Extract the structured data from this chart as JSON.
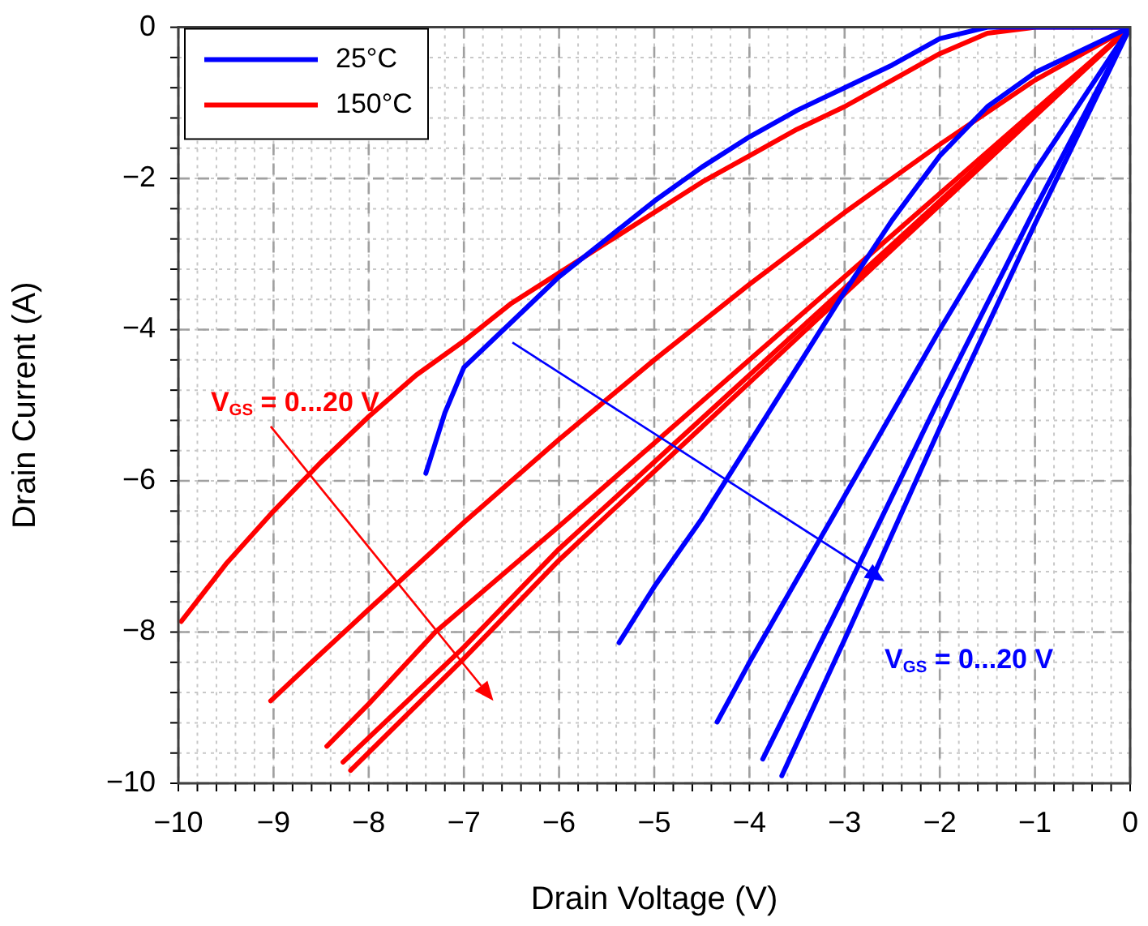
{
  "chart_data": {
    "type": "line",
    "xlabel": "Drain Voltage (V)",
    "ylabel": "Drain Current (A)",
    "xlim": [
      -10,
      0
    ],
    "ylim": [
      -10,
      0
    ],
    "xticks": [
      {
        "value": -10,
        "label": "−10"
      },
      {
        "value": -9,
        "label": "−9"
      },
      {
        "value": -8,
        "label": "−8"
      },
      {
        "value": -7,
        "label": "−7"
      },
      {
        "value": -6,
        "label": "−6"
      },
      {
        "value": -5,
        "label": "−5"
      },
      {
        "value": -4,
        "label": "−4"
      },
      {
        "value": -3,
        "label": "−3"
      },
      {
        "value": -2,
        "label": "−2"
      },
      {
        "value": -1,
        "label": "−1"
      },
      0
    ],
    "yticks": [
      {
        "value": -10,
        "label": "−10"
      },
      {
        "value": -8,
        "label": "−8"
      },
      {
        "value": -6,
        "label": "−6"
      },
      {
        "value": -4,
        "label": "−4"
      },
      {
        "value": -2,
        "label": "−2"
      },
      0
    ],
    "grid": true,
    "legend": "top left",
    "marker": "none",
    "line_style": "solid",
    "series": [
      {
        "name": "25°C",
        "color": "#0000ff",
        "x": [
          0,
          -1,
          -1.5,
          -2,
          -2.5,
          -3,
          -3.5,
          -4,
          -4.5,
          -5,
          -5.5,
          -6,
          -6.5,
          -7,
          -7.2,
          -7.35,
          -7.4
        ],
        "values": [
          0,
          0,
          0,
          -0.15,
          -0.5,
          -0.8,
          -1.1,
          -1.45,
          -1.85,
          -2.3,
          -2.8,
          -3.3,
          -3.9,
          -4.5,
          -5.1,
          -5.7,
          -5.9
        ]
      },
      {
        "color": "#0000ff",
        "x": [
          0,
          -0.5,
          -1,
          -1.5,
          -2,
          -2.5,
          -3,
          -3.5,
          -4,
          -4.5,
          -5,
          -5.37
        ],
        "values": [
          0,
          -0.3,
          -0.6,
          -1.05,
          -1.7,
          -2.55,
          -3.5,
          -4.5,
          -5.5,
          -6.5,
          -7.4,
          -8.14
        ]
      },
      {
        "color": "#0000ff",
        "x": [
          0,
          -1,
          -2,
          -3,
          -3.5,
          -4,
          -4.34
        ],
        "values": [
          0,
          -1.9,
          -4.0,
          -6.2,
          -7.3,
          -8.4,
          -9.19
        ]
      },
      {
        "color": "#0000ff",
        "x": [
          0,
          -1,
          -2,
          -3,
          -3.86
        ],
        "values": [
          0,
          -2.4,
          -4.9,
          -7.5,
          -9.68
        ]
      },
      {
        "color": "#0000ff",
        "x": [
          0,
          -1,
          -2,
          -3,
          -3.66
        ],
        "values": [
          0,
          -2.6,
          -5.3,
          -8.1,
          -9.9
        ]
      },
      {
        "name": "150°C",
        "color": "#ff0000",
        "x": [
          0,
          -1,
          -1.5,
          -2,
          -2.5,
          -3,
          -3.5,
          -4,
          -4.5,
          -5,
          -5.5,
          -6,
          -6.5,
          -7,
          -7.5,
          -8,
          -8.5,
          -9,
          -9.5,
          -9.97
        ],
        "values": [
          0,
          0,
          -0.08,
          -0.35,
          -0.7,
          -1.05,
          -1.35,
          -1.7,
          -2.05,
          -2.45,
          -2.85,
          -3.25,
          -3.65,
          -4.15,
          -4.6,
          -5.15,
          -5.75,
          -6.4,
          -7.1,
          -7.86
        ]
      },
      {
        "color": "#ff0000",
        "x": [
          0,
          -1,
          -2,
          -3,
          -4,
          -5,
          -6,
          -7,
          -8,
          -8.6,
          -9.03
        ],
        "values": [
          0,
          -0.7,
          -1.55,
          -2.45,
          -3.4,
          -4.4,
          -5.45,
          -6.55,
          -7.7,
          -8.4,
          -8.91
        ]
      },
      {
        "color": "#ff0000",
        "x": [
          0,
          -1,
          -2,
          -3,
          -4,
          -5,
          -6,
          -7.3,
          -8,
          -8.44
        ],
        "values": [
          0,
          -1.1,
          -2.2,
          -3.3,
          -4.4,
          -5.5,
          -6.6,
          -8.0,
          -8.95,
          -9.51
        ]
      },
      {
        "color": "#ff0000",
        "x": [
          0,
          -2,
          -4,
          -6,
          -7,
          -8.27
        ],
        "values": [
          0,
          -2.3,
          -4.6,
          -6.9,
          -8.2,
          -9.72
        ]
      },
      {
        "color": "#ff0000",
        "x": [
          0,
          -2,
          -4,
          -6,
          -7,
          -8.19
        ],
        "values": [
          0,
          -2.35,
          -4.7,
          -7.05,
          -8.35,
          -9.83
        ]
      }
    ],
    "annotations": [
      "V$_{GS}$ = 0...20 V",
      "V$_{GS}$ = 0...20 V"
    ]
  }
}
